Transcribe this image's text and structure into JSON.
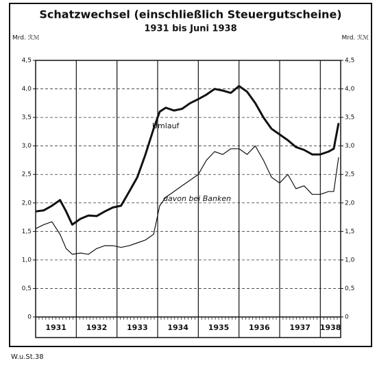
{
  "chart_data": {
    "type": "line",
    "title": "Schatzwechsel (einschließlich Steuergutscheine)",
    "subtitle": "1931 bis Juni 1938",
    "y_label": "Mrd. ℛℳ",
    "y2_label": "Mrd. ℛℳ",
    "footer": "W.u.St.38",
    "annotations": [
      "Umlauf",
      "davon bei Banken"
    ],
    "x": [
      1931,
      1931.2,
      1931.4,
      1931.6,
      1931.75,
      1931.9,
      1932.1,
      1932.3,
      1932.5,
      1932.7,
      1932.9,
      1933.1,
      1933.3,
      1933.5,
      1933.7,
      1933.9,
      1934.05,
      1934.2,
      1934.4,
      1934.6,
      1934.8,
      1935.0,
      1935.2,
      1935.4,
      1935.6,
      1935.8,
      1936.0,
      1936.2,
      1936.4,
      1936.6,
      1936.8,
      1937.0,
      1937.2,
      1937.4,
      1937.6,
      1937.8,
      1938.0,
      1938.2,
      1938.33,
      1938.45
    ],
    "series": [
      {
        "name": "Umlauf",
        "color": "#111111",
        "values": [
          1.85,
          1.87,
          1.95,
          2.05,
          1.85,
          1.62,
          1.72,
          1.78,
          1.77,
          1.85,
          1.92,
          1.95,
          2.2,
          2.45,
          2.85,
          3.3,
          3.6,
          3.67,
          3.62,
          3.65,
          3.75,
          3.82,
          3.9,
          4.0,
          3.97,
          3.93,
          4.05,
          3.95,
          3.75,
          3.5,
          3.3,
          3.2,
          3.1,
          2.98,
          2.93,
          2.85,
          2.85,
          2.9,
          2.95,
          3.4
        ]
      },
      {
        "name": "davon bei Banken",
        "color": "#111111",
        "values": [
          1.55,
          1.62,
          1.67,
          1.45,
          1.2,
          1.1,
          1.12,
          1.1,
          1.2,
          1.25,
          1.25,
          1.22,
          1.25,
          1.3,
          1.35,
          1.45,
          1.95,
          2.1,
          2.2,
          2.3,
          2.4,
          2.5,
          2.75,
          2.9,
          2.85,
          2.95,
          2.95,
          2.85,
          3.0,
          2.75,
          2.45,
          2.35,
          2.5,
          2.25,
          2.3,
          2.15,
          2.15,
          2.2,
          2.2,
          2.8
        ]
      }
    ],
    "xlim": [
      1931,
      1938.5
    ],
    "xticks": [
      {
        "value": 1931.5,
        "label": "1931"
      },
      {
        "value": 1932.5,
        "label": "1932"
      },
      {
        "value": 1933.5,
        "label": "1933"
      },
      {
        "value": 1934.5,
        "label": "1934"
      },
      {
        "value": 1935.5,
        "label": "1935"
      },
      {
        "value": 1936.5,
        "label": "1936"
      },
      {
        "value": 1937.5,
        "label": "1937"
      },
      {
        "value": 1938.25,
        "label": "1938"
      }
    ],
    "xgrid": [
      1932,
      1933,
      1934,
      1935,
      1936,
      1937,
      1938
    ],
    "ylim": [
      0,
      4.5
    ],
    "yticks": [
      0,
      {
        "value": 0.5,
        "label": "0,5"
      },
      {
        "value": 1.0,
        "label": "1,0"
      },
      {
        "value": 1.5,
        "label": "1,5"
      },
      {
        "value": 2.0,
        "label": "2,0"
      },
      {
        "value": 2.5,
        "label": "2,5"
      },
      {
        "value": 3.0,
        "label": "3,0"
      },
      {
        "value": 3.5,
        "label": "3,5"
      },
      {
        "value": 4.0,
        "label": "4,0"
      },
      {
        "value": 4.5,
        "label": "4,5"
      }
    ],
    "grid": true
  }
}
